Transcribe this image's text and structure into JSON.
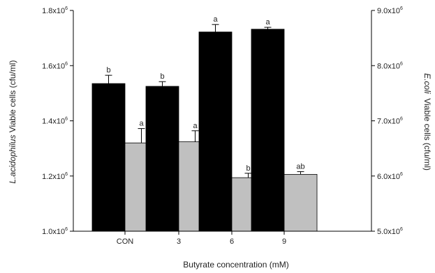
{
  "chart_data": {
    "type": "bar",
    "categories": [
      "CON",
      "3",
      "6",
      "9"
    ],
    "xlabel": "Butyrate concentration (mM)",
    "ylabel_italic": "L.acidophilus",
    "ylabel_rest": " Viable cells (cfu/ml)",
    "y2label_italic": "E.coli",
    "y2label_rest": "  Viable cells (cfu/ml)",
    "ylim": [
      1000000,
      1800000
    ],
    "y2lim": [
      5000000,
      9000000
    ],
    "yticks": [
      {
        "value": 1000000,
        "base": "1.0x10",
        "exp": "6"
      },
      {
        "value": 1200000,
        "base": "1.2x10",
        "exp": "6"
      },
      {
        "value": 1400000,
        "base": "1.4x10",
        "exp": "6"
      },
      {
        "value": 1600000,
        "base": "1.6x10",
        "exp": "6"
      },
      {
        "value": 1800000,
        "base": "1.8x10",
        "exp": "6"
      }
    ],
    "y2ticks": [
      {
        "value": 5000000,
        "base": "5.0x10",
        "exp": "6"
      },
      {
        "value": 6000000,
        "base": "6.0x10",
        "exp": "6"
      },
      {
        "value": 7000000,
        "base": "7.0x10",
        "exp": "6"
      },
      {
        "value": 8000000,
        "base": "8.0x10",
        "exp": "6"
      },
      {
        "value": 9000000,
        "base": "9.0x10",
        "exp": "6"
      }
    ],
    "series": [
      {
        "axis": "left",
        "color": "#000000",
        "values": [
          1535000,
          1525000,
          1722000,
          1732000
        ],
        "errors": [
          30000,
          17000,
          27000,
          7000
        ],
        "labels": [
          "b",
          "b",
          "a",
          "a"
        ]
      },
      {
        "axis": "right",
        "color": "#c0c0c0",
        "values": [
          6600000,
          6620000,
          5970000,
          6030000
        ],
        "errors": [
          260000,
          200000,
          80000,
          50000
        ],
        "labels": [
          "a",
          "a",
          "b",
          "ab"
        ]
      }
    ]
  }
}
